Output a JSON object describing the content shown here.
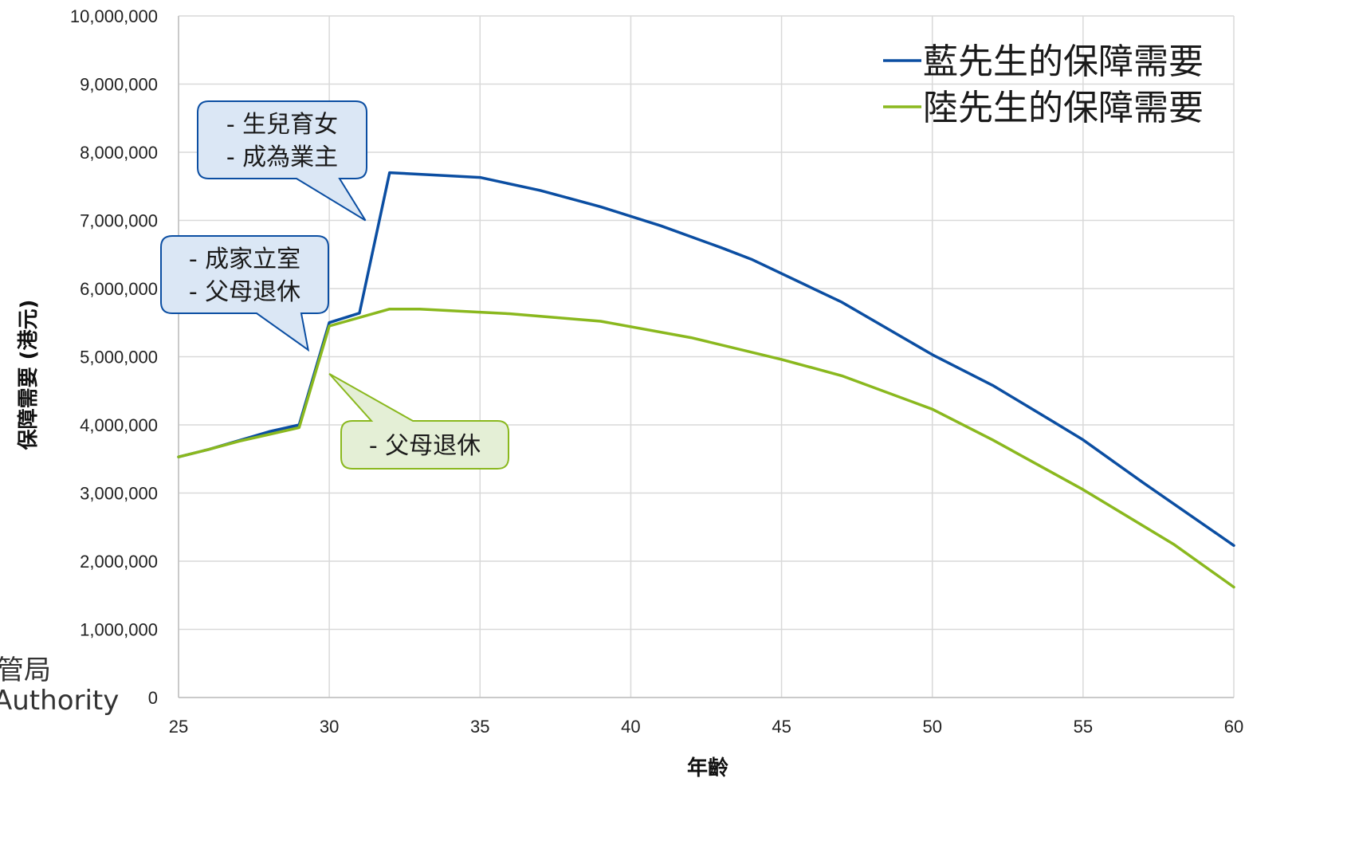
{
  "chart_data": {
    "type": "line",
    "xlabel": "年齡",
    "ylabel": "保障需要 (港元)",
    "xlim": [
      25,
      60
    ],
    "ylim": [
      0,
      10000000
    ],
    "x_ticks": [
      25,
      30,
      35,
      40,
      45,
      50,
      55,
      60
    ],
    "y_ticks": [
      0,
      1000000,
      2000000,
      3000000,
      4000000,
      5000000,
      6000000,
      7000000,
      8000000,
      9000000,
      10000000
    ],
    "grid": true,
    "legend_position": "top-right",
    "series": [
      {
        "name": "藍先生的保障需要",
        "color": "#0b4ea2",
        "x": [
          25,
          26,
          27,
          28,
          29,
          30,
          31,
          32,
          35,
          37,
          39,
          41,
          43,
          44,
          47,
          50,
          52,
          54,
          55,
          57,
          60
        ],
        "values": [
          3530000,
          3640000,
          3770000,
          3900000,
          4000000,
          5500000,
          5640000,
          7700000,
          7630000,
          7440000,
          7200000,
          6920000,
          6600000,
          6430000,
          5800000,
          5030000,
          4580000,
          4050000,
          3780000,
          3150000,
          2230000
        ]
      },
      {
        "name": "陸先生的保障需要",
        "color": "#8ab81e",
        "x": [
          25,
          26,
          27,
          28,
          29,
          30,
          32,
          33,
          36,
          39,
          42,
          45,
          47,
          50,
          52,
          55,
          58,
          60
        ],
        "values": [
          3530000,
          3640000,
          3760000,
          3860000,
          3960000,
          5450000,
          5700000,
          5700000,
          5630000,
          5520000,
          5280000,
          4960000,
          4720000,
          4230000,
          3780000,
          3050000,
          2250000,
          1620000
        ]
      }
    ],
    "annotations": [
      {
        "lines": [
          "- 生兒育女",
          "- 成為業主"
        ],
        "series": "藍先生的保障需要",
        "target_x": 31.2,
        "target_y": 7000000,
        "fill": "#dbe7f5",
        "stroke": "#0b4ea2"
      },
      {
        "lines": [
          "- 成家立室",
          "- 父母退休"
        ],
        "series": "藍先生的保障需要",
        "target_x": 29.3,
        "target_y": 5100000,
        "fill": "#dbe7f5",
        "stroke": "#0b4ea2"
      },
      {
        "lines": [
          "- 父母退休"
        ],
        "series": "陸先生的保障需要",
        "target_x": 30,
        "target_y": 4750000,
        "fill": "#e4efd6",
        "stroke": "#8ab81e"
      }
    ]
  },
  "logo": {
    "line1": "管局",
    "line2": "Authority"
  },
  "y_tick_labels": [
    "0",
    "1,000,000",
    "2,000,000",
    "3,000,000",
    "4,000,000",
    "5,000,000",
    "6,000,000",
    "7,000,000",
    "8,000,000",
    "9,000,000",
    "10,000,000"
  ],
  "x_tick_labels": [
    "25",
    "30",
    "35",
    "40",
    "45",
    "50",
    "55",
    "60"
  ]
}
